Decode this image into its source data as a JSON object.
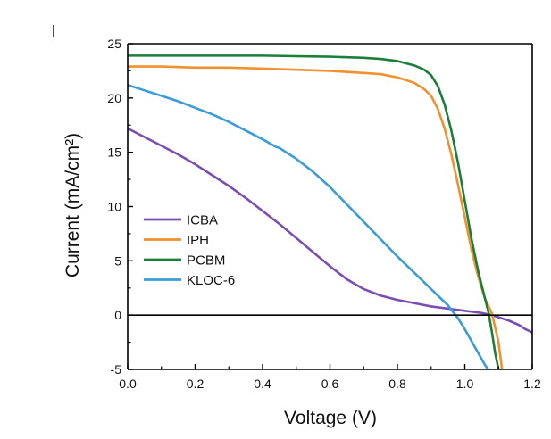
{
  "chart_data": {
    "type": "line",
    "panel_mark": "|",
    "title": "",
    "xlabel": "Voltage (V)",
    "ylabel": "Current (mA/cm²)",
    "xlim": [
      0.0,
      1.2
    ],
    "ylim": [
      -5,
      25
    ],
    "x_ticks": [
      "0.0",
      "0.2",
      "0.4",
      "0.6",
      "0.8",
      "1.0",
      "1.2"
    ],
    "y_ticks": [
      "-5",
      "0",
      "5",
      "10",
      "15",
      "20",
      "25"
    ],
    "grid": false,
    "zero_line": true,
    "legend_position": "center-left",
    "series": [
      {
        "name": "ICBA",
        "color": "#7b4fb2",
        "points": [
          [
            0.0,
            17.2
          ],
          [
            0.05,
            16.4
          ],
          [
            0.1,
            15.6
          ],
          [
            0.15,
            14.8
          ],
          [
            0.2,
            13.9
          ],
          [
            0.25,
            12.9
          ],
          [
            0.3,
            11.9
          ],
          [
            0.35,
            10.8
          ],
          [
            0.4,
            9.6
          ],
          [
            0.45,
            8.4
          ],
          [
            0.5,
            7.1
          ],
          [
            0.55,
            5.8
          ],
          [
            0.6,
            4.5
          ],
          [
            0.65,
            3.3
          ],
          [
            0.7,
            2.4
          ],
          [
            0.75,
            1.8
          ],
          [
            0.8,
            1.4
          ],
          [
            0.85,
            1.1
          ],
          [
            0.9,
            0.8
          ],
          [
            0.95,
            0.6
          ],
          [
            1.0,
            0.4
          ],
          [
            1.05,
            0.2
          ],
          [
            1.08,
            0.0
          ],
          [
            1.1,
            -0.2
          ],
          [
            1.13,
            -0.5
          ],
          [
            1.16,
            -0.9
          ],
          [
            1.18,
            -1.3
          ],
          [
            1.2,
            -1.6
          ]
        ]
      },
      {
        "name": "IPH",
        "color": "#f0902e",
        "points": [
          [
            0.0,
            22.9
          ],
          [
            0.1,
            22.9
          ],
          [
            0.2,
            22.8
          ],
          [
            0.3,
            22.8
          ],
          [
            0.4,
            22.7
          ],
          [
            0.5,
            22.6
          ],
          [
            0.6,
            22.5
          ],
          [
            0.7,
            22.3
          ],
          [
            0.75,
            22.2
          ],
          [
            0.8,
            21.9
          ],
          [
            0.85,
            21.4
          ],
          [
            0.88,
            20.8
          ],
          [
            0.9,
            20.2
          ],
          [
            0.92,
            19.0
          ],
          [
            0.94,
            17.2
          ],
          [
            0.96,
            14.8
          ],
          [
            0.98,
            12.0
          ],
          [
            1.0,
            9.0
          ],
          [
            1.02,
            6.0
          ],
          [
            1.04,
            3.5
          ],
          [
            1.06,
            1.5
          ],
          [
            1.08,
            0.2
          ],
          [
            1.1,
            -2.5
          ],
          [
            1.11,
            -4.9
          ]
        ]
      },
      {
        "name": "PCBM",
        "color": "#1b7f3a",
        "points": [
          [
            0.0,
            23.9
          ],
          [
            0.1,
            23.9
          ],
          [
            0.2,
            23.9
          ],
          [
            0.3,
            23.9
          ],
          [
            0.4,
            23.9
          ],
          [
            0.5,
            23.85
          ],
          [
            0.6,
            23.8
          ],
          [
            0.7,
            23.7
          ],
          [
            0.75,
            23.6
          ],
          [
            0.8,
            23.4
          ],
          [
            0.85,
            23.0
          ],
          [
            0.88,
            22.6
          ],
          [
            0.9,
            22.1
          ],
          [
            0.92,
            21.1
          ],
          [
            0.94,
            19.4
          ],
          [
            0.96,
            17.0
          ],
          [
            0.98,
            14.0
          ],
          [
            1.0,
            10.5
          ],
          [
            1.02,
            7.0
          ],
          [
            1.04,
            4.0
          ],
          [
            1.06,
            1.5
          ],
          [
            1.07,
            0.3
          ],
          [
            1.08,
            -1.5
          ],
          [
            1.09,
            -3.5
          ],
          [
            1.1,
            -5.0
          ]
        ]
      },
      {
        "name": "KLOC-6",
        "color": "#3a9dd6",
        "points": [
          [
            0.0,
            21.2
          ],
          [
            0.05,
            20.7
          ],
          [
            0.1,
            20.2
          ],
          [
            0.15,
            19.7
          ],
          [
            0.2,
            19.1
          ],
          [
            0.25,
            18.5
          ],
          [
            0.3,
            17.8
          ],
          [
            0.35,
            17.0
          ],
          [
            0.4,
            16.2
          ],
          [
            0.44,
            15.5
          ],
          [
            0.45,
            15.4
          ],
          [
            0.48,
            14.8
          ],
          [
            0.5,
            14.4
          ],
          [
            0.55,
            13.2
          ],
          [
            0.6,
            11.8
          ],
          [
            0.65,
            10.2
          ],
          [
            0.7,
            8.6
          ],
          [
            0.75,
            7.0
          ],
          [
            0.8,
            5.4
          ],
          [
            0.85,
            3.9
          ],
          [
            0.9,
            2.4
          ],
          [
            0.95,
            0.9
          ],
          [
            0.98,
            -0.3
          ],
          [
            1.0,
            -1.3
          ],
          [
            1.02,
            -2.4
          ],
          [
            1.04,
            -3.5
          ],
          [
            1.06,
            -4.6
          ],
          [
            1.07,
            -5.0
          ]
        ]
      }
    ]
  }
}
